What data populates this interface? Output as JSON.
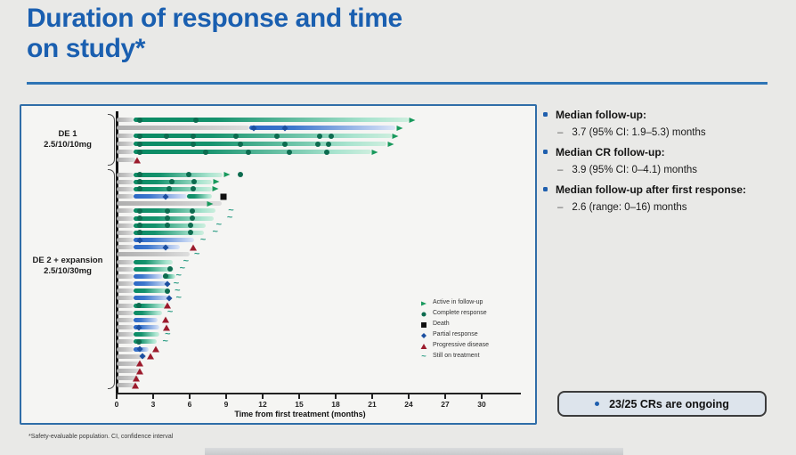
{
  "slide": {
    "title_line1": "Duration of response and time",
    "title_line2": "on study*",
    "footnote": "*Safety-evaluable population. CI, confidence interval"
  },
  "glyphs": {
    "dash": "–"
  },
  "bullets": [
    {
      "label": "Median follow-up:",
      "value": "3.7 (95% CI: 1.9–5.3) months"
    },
    {
      "label": "Median CR follow-up:",
      "value": "3.9 (95% CI: 0–4.1) months"
    },
    {
      "label": "Median follow-up after first response:",
      "value": "2.6 (range: 0–16) months"
    }
  ],
  "highlight_box": "23/25 CRs are ongoing",
  "chart_data": {
    "type": "swimmer",
    "xlabel": "Time from first treatment (months)",
    "xticks": [
      0,
      3,
      6,
      9,
      12,
      15,
      18,
      21,
      24,
      27,
      30
    ],
    "xlim": [
      0,
      33
    ],
    "grid": false,
    "legend_position": "inside-right",
    "cohorts": [
      {
        "id": "de1",
        "label": "DE 1",
        "dose": "2.5/10/10mg"
      },
      {
        "id": "de2",
        "label": "DE 2 + expansion",
        "dose": "2.5/10/30mg"
      }
    ],
    "legend": [
      {
        "marker": "fu",
        "label": "Active in follow-up"
      },
      {
        "marker": "cr",
        "label": "Complete response"
      },
      {
        "marker": "death",
        "label": "Death"
      },
      {
        "marker": "pr",
        "label": "Partial response"
      },
      {
        "marker": "pd",
        "label": "Progressive disease"
      },
      {
        "marker": "tilde",
        "label": "Still on treatment"
      }
    ],
    "marker_glyphs": {
      "tilde": "~"
    },
    "colors": {
      "green_bar": "#0a8a63",
      "blue_bar": "#2b67c5",
      "gray_bar": "#bdbdbd",
      "complete_response": "#0d6b4f",
      "partial_response": "#1c4fa0",
      "progressive_disease": "#9c1b2c",
      "death": "#101010",
      "active_followup": "#18995c",
      "still_on_treatment": "#2f9e86",
      "title": "#1a5fb0",
      "accent_rule": "#2e74b5",
      "panel_border": "#2f6da8",
      "bullet": "#1f5fae"
    },
    "rows": [
      {
        "c": "de1",
        "seg": [
          [
            "gray",
            0,
            1.4
          ],
          [
            "green",
            1.4,
            24.0
          ]
        ],
        "mk": [
          [
            "cr",
            1.9
          ],
          [
            "cr",
            6.5
          ],
          [
            "fu",
            24.3
          ]
        ]
      },
      {
        "c": "de1",
        "seg": [
          [
            "gray",
            0,
            10.9
          ],
          [
            "blue",
            10.9,
            22.9
          ]
        ],
        "mk": [
          [
            "pr",
            11.3
          ],
          [
            "pr",
            13.8
          ],
          [
            "fu",
            23.3
          ]
        ]
      },
      {
        "c": "de1",
        "seg": [
          [
            "gray",
            0,
            1.4
          ],
          [
            "green",
            1.4,
            22.6
          ]
        ],
        "mk": [
          [
            "cr",
            1.9
          ],
          [
            "cr",
            4.1
          ],
          [
            "cr",
            6.3
          ],
          [
            "cr",
            9.8
          ],
          [
            "cr",
            13.2
          ],
          [
            "cr",
            16.7
          ],
          [
            "cr",
            17.6
          ],
          [
            "fu",
            22.9
          ]
        ]
      },
      {
        "c": "de1",
        "seg": [
          [
            "gray",
            0,
            1.4
          ],
          [
            "green",
            1.4,
            22.2
          ]
        ],
        "mk": [
          [
            "cr",
            1.9
          ],
          [
            "cr",
            6.3
          ],
          [
            "cr",
            10.2
          ],
          [
            "cr",
            13.8
          ],
          [
            "cr",
            16.5
          ],
          [
            "cr",
            17.4
          ],
          [
            "fu",
            22.5
          ]
        ]
      },
      {
        "c": "de1",
        "seg": [
          [
            "gray",
            0,
            1.4
          ],
          [
            "green",
            1.4,
            20.9
          ]
        ],
        "mk": [
          [
            "cr",
            1.9
          ],
          [
            "cr",
            7.3
          ],
          [
            "cr",
            10.8
          ],
          [
            "cr",
            14.2
          ],
          [
            "cr",
            17.3
          ],
          [
            "fu",
            21.2
          ]
        ]
      },
      {
        "c": "de1",
        "seg": [
          [
            "gray",
            0,
            1.5
          ]
        ],
        "mk": [
          [
            "pd",
            1.7
          ]
        ]
      },
      {
        "c": "de2",
        "seg": [
          [
            "gray",
            0,
            1.4
          ],
          [
            "green",
            1.4,
            8.7
          ]
        ],
        "mk": [
          [
            "cr",
            1.9
          ],
          [
            "cr",
            5.9
          ],
          [
            "fu",
            9.1
          ],
          [
            "cr",
            10.2
          ]
        ]
      },
      {
        "c": "de2",
        "seg": [
          [
            "gray",
            0,
            1.4
          ],
          [
            "green",
            1.4,
            7.8
          ]
        ],
        "mk": [
          [
            "cr",
            1.9
          ],
          [
            "cr",
            4.5
          ],
          [
            "cr",
            6.4
          ],
          [
            "fu",
            8.2
          ]
        ]
      },
      {
        "c": "de2",
        "seg": [
          [
            "gray",
            0,
            1.4
          ],
          [
            "green",
            1.4,
            7.8
          ]
        ],
        "mk": [
          [
            "cr",
            1.9
          ],
          [
            "cr",
            4.3
          ],
          [
            "cr",
            6.3
          ],
          [
            "fu",
            8.1
          ]
        ]
      },
      {
        "c": "de2",
        "seg": [
          [
            "gray",
            0,
            1.4
          ],
          [
            "blue",
            1.4,
            5.8
          ],
          [
            "green",
            5.8,
            7.8
          ]
        ],
        "mk": [
          [
            "pr",
            4.0
          ],
          [
            "death",
            8.8
          ]
        ]
      },
      {
        "c": "de2",
        "seg": [
          [
            "gray",
            0,
            8.6
          ]
        ],
        "mk": [
          [
            "fu",
            7.7
          ]
        ]
      },
      {
        "c": "de2",
        "seg": [
          [
            "gray",
            0,
            1.4
          ],
          [
            "green",
            1.4,
            8.1
          ]
        ],
        "mk": [
          [
            "cr",
            1.9
          ],
          [
            "cr",
            4.2
          ],
          [
            "cr",
            6.2
          ],
          [
            "tilde",
            9.4
          ]
        ]
      },
      {
        "c": "de2",
        "seg": [
          [
            "gray",
            0,
            1.4
          ],
          [
            "green",
            1.4,
            8.0
          ]
        ],
        "mk": [
          [
            "cr",
            1.9
          ],
          [
            "cr",
            4.2
          ],
          [
            "cr",
            6.2
          ],
          [
            "tilde",
            9.3
          ]
        ]
      },
      {
        "c": "de2",
        "seg": [
          [
            "gray",
            0,
            1.4
          ],
          [
            "green",
            1.4,
            7.3
          ]
        ],
        "mk": [
          [
            "cr",
            1.9
          ],
          [
            "cr",
            4.2
          ],
          [
            "cr",
            6.1
          ],
          [
            "tilde",
            8.4
          ]
        ]
      },
      {
        "c": "de2",
        "seg": [
          [
            "gray",
            0,
            1.4
          ],
          [
            "green",
            1.4,
            7.2
          ]
        ],
        "mk": [
          [
            "cr",
            1.9
          ],
          [
            "cr",
            6.1
          ],
          [
            "tilde",
            8.1
          ]
        ]
      },
      {
        "c": "de2",
        "seg": [
          [
            "gray",
            0,
            1.4
          ],
          [
            "blue",
            1.4,
            6.4
          ]
        ],
        "mk": [
          [
            "pr",
            1.9
          ],
          [
            "tilde",
            7.1
          ]
        ]
      },
      {
        "c": "de2",
        "seg": [
          [
            "gray",
            0,
            1.4
          ],
          [
            "blue",
            1.4,
            5.2
          ]
        ],
        "mk": [
          [
            "pr",
            4.0
          ],
          [
            "pd",
            6.3
          ]
        ]
      },
      {
        "c": "de2",
        "seg": [
          [
            "gray",
            0,
            6.0
          ]
        ],
        "mk": [
          [
            "tilde",
            6.6
          ]
        ]
      },
      {
        "c": "de2",
        "seg": [
          [
            "gray",
            0,
            1.4
          ],
          [
            "green",
            1.4,
            4.6
          ]
        ],
        "mk": [
          [
            "tilde",
            5.7
          ]
        ]
      },
      {
        "c": "de2",
        "seg": [
          [
            "gray",
            0,
            1.4
          ],
          [
            "green",
            1.4,
            4.7
          ]
        ],
        "mk": [
          [
            "cr",
            4.4
          ],
          [
            "tilde",
            5.4
          ]
        ]
      },
      {
        "c": "de2",
        "seg": [
          [
            "gray",
            0,
            1.4
          ],
          [
            "blue",
            1.4,
            3.8
          ],
          [
            "green",
            3.8,
            4.8
          ]
        ],
        "mk": [
          [
            "cr",
            4.0
          ],
          [
            "tilde",
            5.1
          ]
        ]
      },
      {
        "c": "de2",
        "seg": [
          [
            "gray",
            0,
            1.4
          ],
          [
            "blue",
            1.4,
            4.3
          ]
        ],
        "mk": [
          [
            "pr",
            4.2
          ],
          [
            "tilde",
            4.9
          ]
        ]
      },
      {
        "c": "de2",
        "seg": [
          [
            "gray",
            0,
            1.4
          ],
          [
            "green",
            1.4,
            4.4
          ]
        ],
        "mk": [
          [
            "cr",
            4.2
          ],
          [
            "tilde",
            5.0
          ]
        ]
      },
      {
        "c": "de2",
        "seg": [
          [
            "gray",
            0,
            1.4
          ],
          [
            "blue",
            1.4,
            4.4
          ]
        ],
        "mk": [
          [
            "pr",
            4.3
          ],
          [
            "tilde",
            5.1
          ]
        ]
      },
      {
        "c": "de2",
        "seg": [
          [
            "gray",
            0,
            1.4
          ],
          [
            "green",
            1.4,
            4.0
          ]
        ],
        "mk": [
          [
            "cr",
            1.8
          ],
          [
            "pd",
            4.2
          ]
        ]
      },
      {
        "c": "de2",
        "seg": [
          [
            "gray",
            0,
            1.4
          ],
          [
            "green",
            1.4,
            3.7
          ]
        ],
        "mk": [
          [
            "tilde",
            4.4
          ]
        ]
      },
      {
        "c": "de2",
        "seg": [
          [
            "gray",
            0,
            1.4
          ],
          [
            "blue",
            1.4,
            3.4
          ]
        ],
        "mk": [
          [
            "pd",
            4.0
          ]
        ]
      },
      {
        "c": "de2",
        "seg": [
          [
            "gray",
            0,
            1.4
          ],
          [
            "blue",
            1.4,
            3.5
          ]
        ],
        "mk": [
          [
            "pr",
            1.8
          ],
          [
            "pd",
            4.1
          ]
        ]
      },
      {
        "c": "de2",
        "seg": [
          [
            "gray",
            0,
            1.4
          ],
          [
            "green",
            1.4,
            3.5
          ]
        ],
        "mk": [
          [
            "tilde",
            4.2
          ]
        ]
      },
      {
        "c": "de2",
        "seg": [
          [
            "gray",
            0,
            1.4
          ],
          [
            "green",
            1.4,
            3.3
          ]
        ],
        "mk": [
          [
            "cr",
            1.8
          ],
          [
            "tilde",
            4.0
          ]
        ]
      },
      {
        "c": "de2",
        "seg": [
          [
            "gray",
            0,
            1.4
          ],
          [
            "blue",
            1.4,
            2.6
          ]
        ],
        "mk": [
          [
            "pr",
            1.9
          ],
          [
            "pd",
            3.2
          ]
        ]
      },
      {
        "c": "de2",
        "seg": [
          [
            "gray",
            0,
            2.4
          ]
        ],
        "mk": [
          [
            "pr",
            2.1
          ],
          [
            "pd",
            2.8
          ]
        ]
      },
      {
        "c": "de2",
        "seg": [
          [
            "gray",
            0,
            2.0
          ]
        ],
        "mk": [
          [
            "pd",
            1.9
          ]
        ]
      },
      {
        "c": "de2",
        "seg": [
          [
            "gray",
            0,
            2.0
          ]
        ],
        "mk": [
          [
            "pd",
            1.9
          ]
        ]
      },
      {
        "c": "de2",
        "seg": [
          [
            "gray",
            0,
            1.8
          ]
        ],
        "mk": [
          [
            "pd",
            1.6
          ]
        ]
      },
      {
        "c": "de2",
        "seg": [
          [
            "gray",
            0,
            1.5
          ]
        ],
        "mk": [
          [
            "pd",
            1.5
          ]
        ]
      }
    ]
  }
}
